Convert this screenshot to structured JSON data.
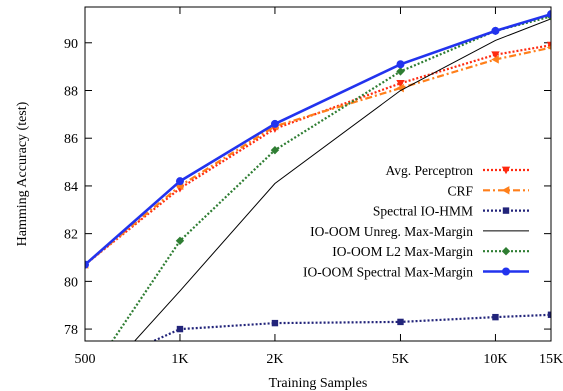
{
  "chart_data": {
    "type": "line",
    "xlabel": "Training Samples",
    "ylabel": "Hamming Accuracy (test)",
    "x_scale": "log",
    "xlim": [
      500,
      15000
    ],
    "ylim": [
      77.5,
      91.5
    ],
    "x_ticks": [
      500,
      1000,
      2000,
      5000,
      10000,
      15000
    ],
    "x_tick_labels": [
      "500",
      "1K",
      "2K",
      "5K",
      "10K",
      "15K"
    ],
    "y_ticks": [
      78,
      80,
      82,
      84,
      86,
      88,
      90
    ],
    "y_tick_labels": [
      "78",
      "80",
      "82",
      "84",
      "86",
      "88",
      "90"
    ],
    "grid": false,
    "legend_position": "center-right",
    "series": [
      {
        "name": "Avg. Perceptron",
        "color": "#ff2a10",
        "marker": "triangle-down",
        "dash": "dotted",
        "x": [
          500,
          1000,
          2000,
          5000,
          10000,
          15000
        ],
        "y": [
          80.7,
          83.9,
          86.4,
          88.3,
          89.5,
          89.9
        ]
      },
      {
        "name": "CRF",
        "color": "#ff7f1a",
        "marker": "triangle-left",
        "dash": "dashdot",
        "x": [
          500,
          1000,
          2000,
          5000,
          10000,
          15000
        ],
        "y": [
          80.7,
          84.0,
          86.5,
          88.1,
          89.3,
          89.8
        ]
      },
      {
        "name": "Spectral IO-HMM",
        "color": "#22247a",
        "marker": "square",
        "dash": "dotted",
        "x": [
          500,
          1000,
          2000,
          5000,
          10000,
          15000
        ],
        "y": [
          76.2,
          78.0,
          78.25,
          78.3,
          78.5,
          78.6
        ]
      },
      {
        "name": "IO-OOM Unreg. Max-Margin",
        "color": "#000000",
        "marker": "none",
        "dash": "solid",
        "x": [
          500,
          1000,
          2000,
          5000,
          10000,
          15000
        ],
        "y": [
          75.2,
          79.6,
          84.1,
          88.0,
          90.1,
          91.0
        ]
      },
      {
        "name": "IO-OOM L2 Max-Margin",
        "color": "#2e7d32",
        "marker": "diamond",
        "dash": "dotted",
        "x": [
          500,
          1000,
          2000,
          5000,
          10000,
          15000
        ],
        "y": [
          75.8,
          81.7,
          85.5,
          88.8,
          90.5,
          91.1
        ]
      },
      {
        "name": "IO-OOM Spectral Max-Margin",
        "color": "#2233ee",
        "marker": "circle",
        "dash": "solid",
        "x": [
          500,
          1000,
          2000,
          5000,
          10000,
          15000
        ],
        "y": [
          80.7,
          84.2,
          86.6,
          89.1,
          90.5,
          91.2
        ]
      }
    ]
  }
}
